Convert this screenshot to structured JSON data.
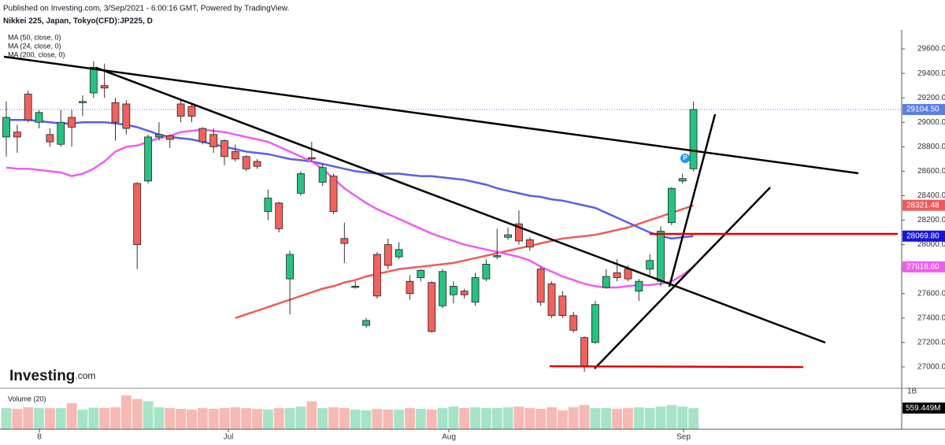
{
  "header": {
    "published": "Published on Investing.com, 3/Sep/2021 - 6:00:16 GMT, Powered by TradingView.",
    "instrument": "Nikkei 225, Japan, Tokyo(CFD):JP225, D"
  },
  "logo": "Investing",
  "logo_suffix": ".com",
  "marker": "P",
  "chart_data": {
    "type": "candlestick",
    "up_color": "#26c281",
    "down_color": "#f0625b",
    "ylim": [
      26845,
      29755
    ],
    "yticks": [
      {
        "value": 27000,
        "label": "27000.00"
      },
      {
        "value": 27200,
        "label": "27200.00"
      },
      {
        "value": 27400,
        "label": "27400.00"
      },
      {
        "value": 27600,
        "label": "27600.00"
      },
      {
        "value": 27800,
        "label": "27800.00"
      },
      {
        "value": 28000,
        "label": "28000.00"
      },
      {
        "value": 28200,
        "label": "28200.00"
      },
      {
        "value": 28400,
        "label": "28400.00"
      },
      {
        "value": 28600,
        "label": "28600.00"
      },
      {
        "value": 28800,
        "label": "28800.00"
      },
      {
        "value": 29000,
        "label": "29000.00"
      },
      {
        "value": 29200,
        "label": "29200.00"
      },
      {
        "value": 29400,
        "label": "29400.00"
      },
      {
        "value": 29600,
        "label": "29600.00"
      }
    ],
    "xtick_labels": [
      "8",
      "Jul",
      "Aug",
      "Sep"
    ],
    "last_price": 29104.5,
    "last_price_label": "29104.50",
    "last_price_color": "#5b7fe6",
    "open": [
      28880,
      28920,
      29230,
      29000,
      28900,
      28820,
      29040,
      29160,
      29240,
      29300,
      29160,
      29150,
      28500,
      28520,
      28880,
      28890,
      29150,
      29130,
      28950,
      28900,
      28850,
      28760,
      28720,
      28680,
      28270,
      28340,
      27720,
      28420,
      28710,
      28510,
      28560,
      28050,
      27660,
      27340,
      27920,
      28000,
      27900,
      27700,
      27730,
      27690,
      27500,
      27590,
      27620,
      27530,
      27720,
      27900,
      28060,
      28170,
      28040,
      27800,
      27680,
      27580,
      27420,
      27240,
      27200,
      27650,
      27770,
      27800,
      27620,
      27800,
      27700,
      28180,
      28520,
      28620
    ],
    "high": [
      29170,
      28980,
      29260,
      29100,
      28950,
      29100,
      29100,
      29220,
      29500,
      29480,
      29200,
      29180,
      28510,
      28900,
      29000,
      28900,
      29180,
      29150,
      28960,
      28950,
      28860,
      28820,
      28730,
      28700,
      28450,
      28350,
      27950,
      28600,
      28840,
      28660,
      28580,
      28180,
      27700,
      27400,
      27940,
      28050,
      28020,
      27750,
      27800,
      27700,
      27800,
      27700,
      27640,
      27770,
      27880,
      28130,
      28140,
      28280,
      28060,
      27820,
      27700,
      27620,
      27450,
      27250,
      27540,
      27800,
      27880,
      27830,
      27720,
      27920,
      28150,
      28470,
      28580,
      29170
    ],
    "low": [
      28720,
      28750,
      29000,
      28950,
      28800,
      28800,
      28800,
      29050,
      29200,
      29200,
      28850,
      28900,
      27800,
      28500,
      28850,
      28790,
      29000,
      29000,
      28820,
      28750,
      28650,
      28680,
      28600,
      28620,
      28200,
      28100,
      27430,
      28400,
      28680,
      28480,
      28250,
      27850,
      27640,
      27320,
      27560,
      27800,
      27880,
      27550,
      27700,
      27280,
      27480,
      27520,
      27560,
      27500,
      27700,
      27880,
      28040,
      28000,
      27950,
      27500,
      27400,
      27400,
      27280,
      26960,
      27190,
      27640,
      27700,
      27700,
      27540,
      27750,
      27660,
      28160,
      28500,
      28600
    ],
    "close": [
      29040,
      28880,
      29020,
      29080,
      28840,
      29000,
      28960,
      29170,
      29450,
      29280,
      29000,
      28950,
      28000,
      28880,
      28900,
      28860,
      29050,
      29050,
      28840,
      28800,
      28720,
      28700,
      28620,
      28640,
      28380,
      28130,
      27920,
      28580,
      28700,
      28630,
      28270,
      28010,
      27660,
      27380,
      27580,
      27830,
      27960,
      27600,
      27790,
      27290,
      27780,
      27660,
      27590,
      27730,
      27840,
      27910,
      28080,
      28030,
      27980,
      27530,
      27420,
      27420,
      27300,
      27010,
      27510,
      27740,
      27730,
      27720,
      27700,
      27870,
      28110,
      28460,
      28540,
      29104.5
    ],
    "series": [
      {
        "name": "MA (50, close, 0)",
        "color": "#f05a5a",
        "last_label": "28321.48",
        "values": [
          null,
          null,
          null,
          null,
          null,
          null,
          null,
          null,
          null,
          null,
          null,
          null,
          null,
          null,
          null,
          null,
          null,
          null,
          null,
          null,
          null,
          27400,
          27430,
          27460,
          27490,
          27520,
          27550,
          27580,
          27610,
          27640,
          27660,
          27690,
          27710,
          27740,
          27760,
          27780,
          27800,
          27810,
          27820,
          27830,
          27840,
          27850,
          27870,
          27890,
          27910,
          27930,
          27950,
          27970,
          27990,
          28010,
          28030,
          28050,
          28060,
          28070,
          28080,
          28100,
          28120,
          28140,
          28170,
          28200,
          28230,
          28260,
          28290,
          28321.48
        ]
      },
      {
        "name": "MA (24, close, 0)",
        "color": "#5b5fe8",
        "last_label": "28069.80",
        "label_color": "#1616d8",
        "values": [
          29020,
          29020,
          29020,
          29010,
          29000,
          28990,
          28990,
          29000,
          29000,
          29000,
          28990,
          28980,
          28960,
          28930,
          28900,
          28880,
          28870,
          28860,
          28840,
          28820,
          28800,
          28780,
          28760,
          28750,
          28740,
          28720,
          28700,
          28690,
          28680,
          28660,
          28640,
          28620,
          28600,
          28590,
          28580,
          28580,
          28580,
          28570,
          28560,
          28560,
          28550,
          28540,
          28530,
          28510,
          28490,
          28460,
          28440,
          28420,
          28400,
          28390,
          28370,
          28360,
          28340,
          28320,
          28300,
          28260,
          28220,
          28180,
          28140,
          28100,
          28070,
          28050,
          28060,
          28069.8
        ]
      },
      {
        "name": "MA (200, close, 0)",
        "color": "#f05cf0",
        "last_label": "27818.60",
        "values": [
          28630,
          28620,
          28620,
          28610,
          28600,
          28590,
          28560,
          28580,
          28620,
          28680,
          28760,
          28800,
          28810,
          28840,
          28870,
          28890,
          28920,
          28930,
          28940,
          28930,
          28920,
          28900,
          28880,
          28860,
          28840,
          28800,
          28760,
          28720,
          28680,
          28620,
          28540,
          28460,
          28400,
          28340,
          28290,
          28250,
          28210,
          28170,
          28130,
          28090,
          28060,
          28030,
          28000,
          27980,
          27960,
          27940,
          27920,
          27900,
          27870,
          27820,
          27780,
          27740,
          27710,
          27680,
          27660,
          27650,
          27650,
          27660,
          27670,
          27670,
          27680,
          27700,
          27750,
          27818.6
        ]
      }
    ],
    "volume": {
      "name": "Volume (20)",
      "up_color": "#a6e3c7",
      "down_color": "#f7b9b3",
      "ylim": [
        0,
        1000
      ],
      "top_label": "1B",
      "last_label": "559.449M",
      "values": [
        560,
        540,
        580,
        560,
        560,
        560,
        690,
        520,
        570,
        560,
        580,
        895,
        800,
        740,
        580,
        560,
        540,
        520,
        560,
        540,
        560,
        580,
        560,
        540,
        520,
        560,
        560,
        600,
        740,
        560,
        580,
        560,
        520,
        500,
        540,
        520,
        520,
        560,
        540,
        520,
        560,
        600,
        560,
        580,
        560,
        560,
        580,
        600,
        560,
        540,
        580,
        500,
        580,
        640,
        560,
        560,
        540,
        560,
        580,
        560,
        600,
        640,
        600,
        559.449
      ]
    }
  }
}
